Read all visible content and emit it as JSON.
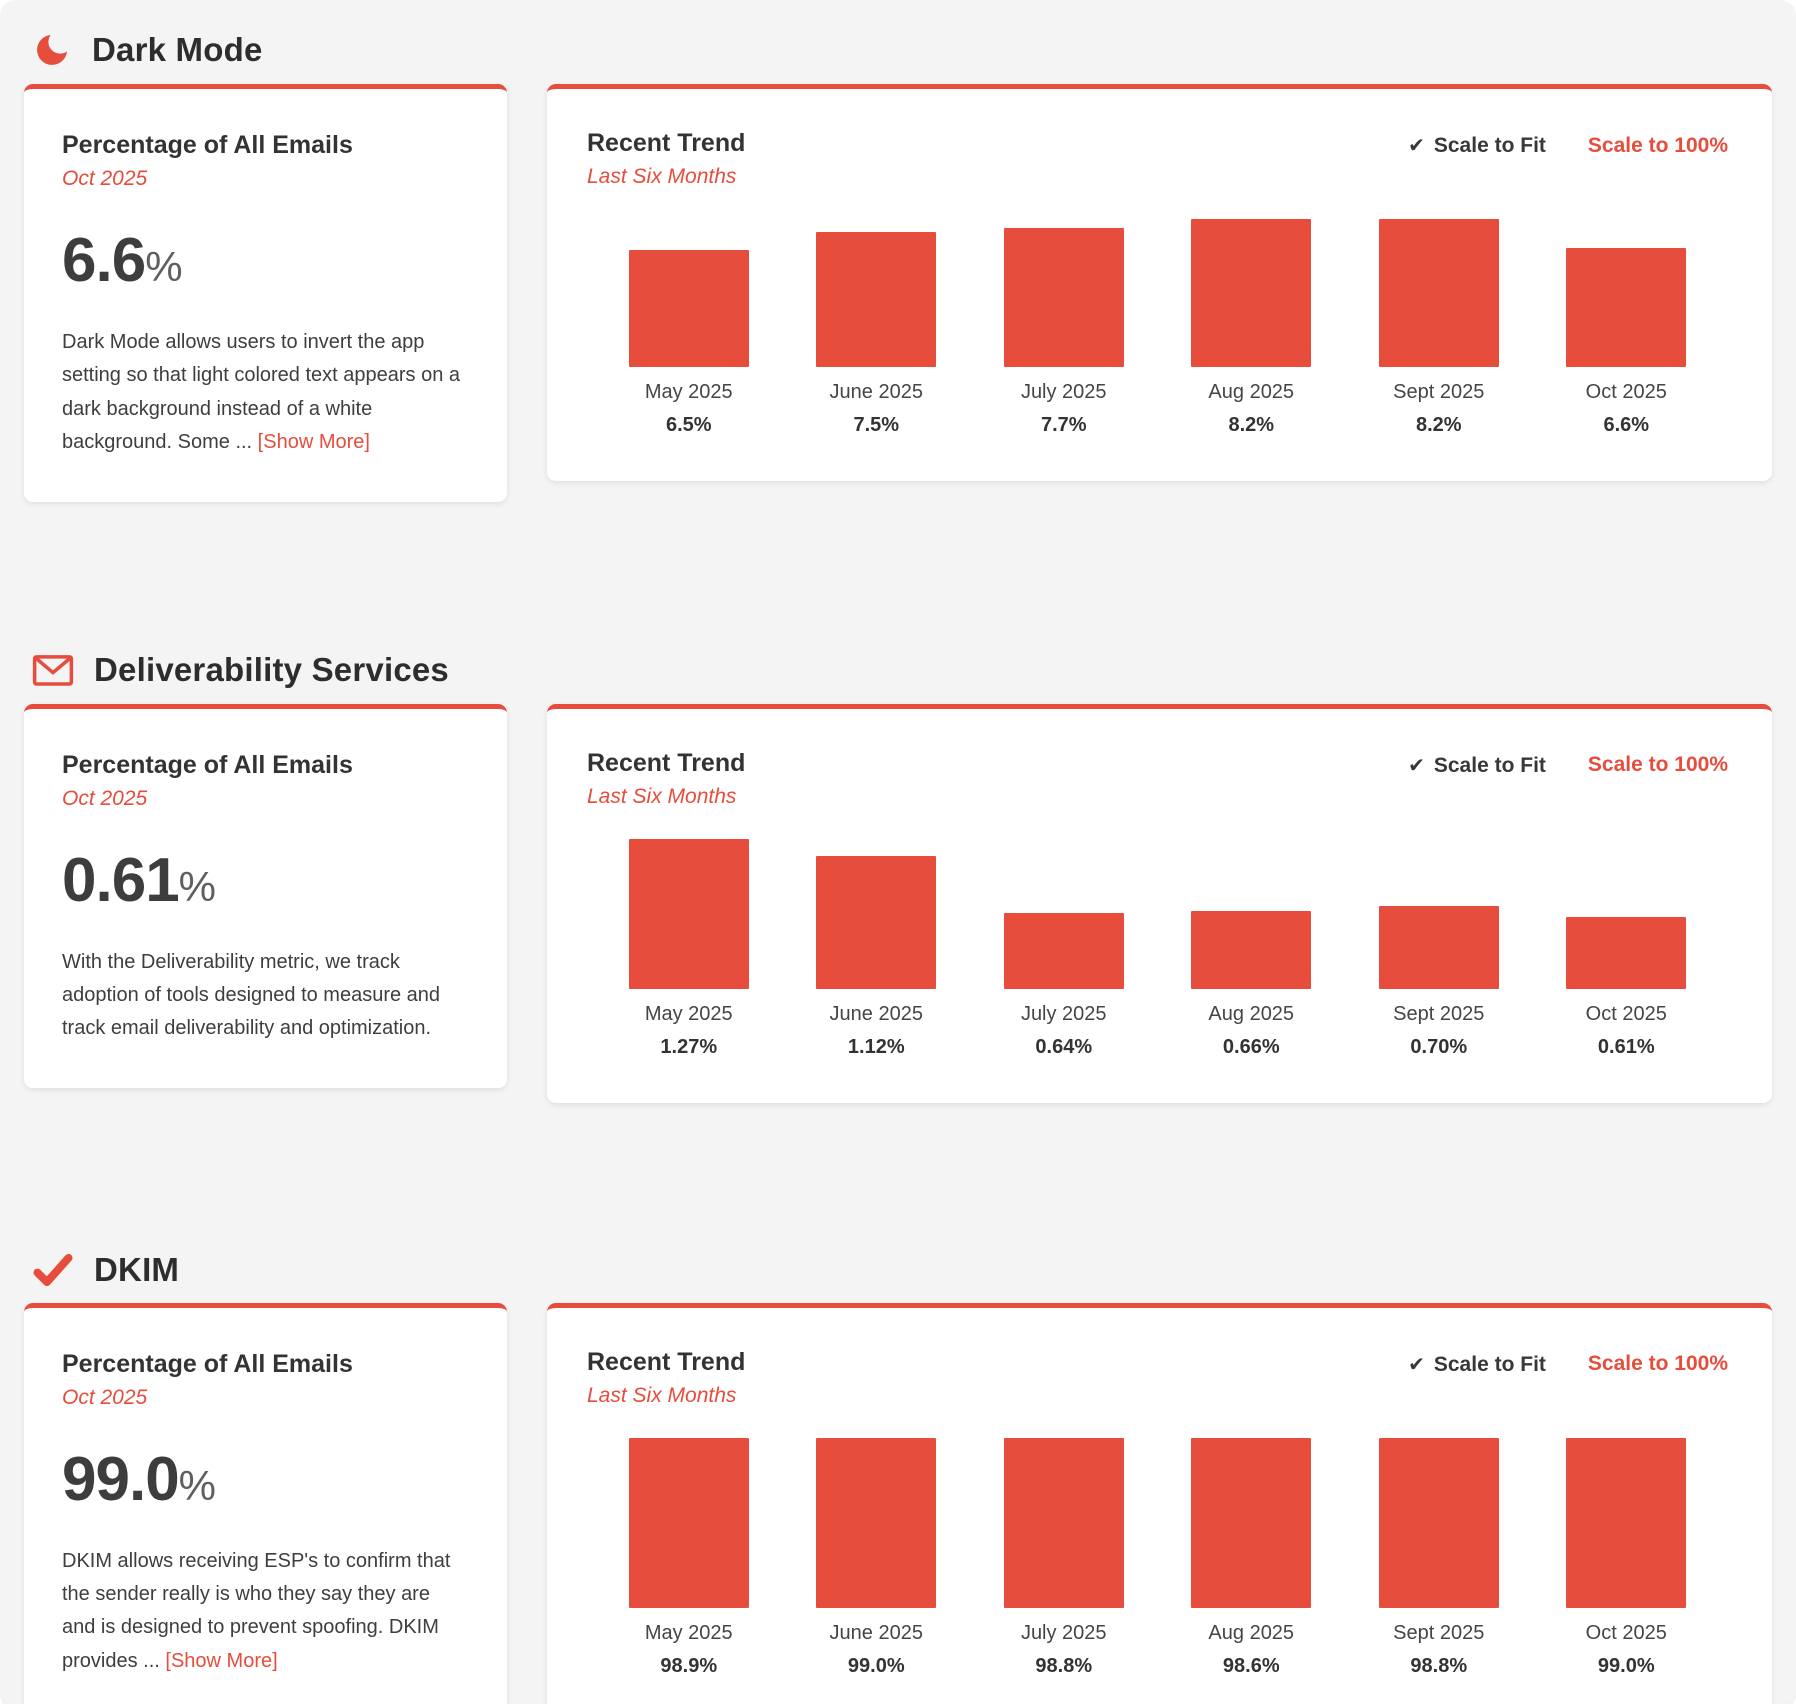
{
  "accent_color": "#e64d3c",
  "sections": [
    {
      "icon_name": "moon-icon",
      "title": "Dark Mode",
      "summary": {
        "heading": "Percentage of All Emails",
        "period": "Oct 2025",
        "value": "6.6",
        "unit": "%",
        "description": "Dark Mode allows users to invert the app setting so that light colored text appears on a dark background instead of a white background. Some ... ",
        "show_more_label": "[Show More]"
      },
      "trend": {
        "heading": "Recent Trend",
        "subheading": "Last Six Months",
        "scale_to_fit_label": "Scale to Fit",
        "scale_to_100_label": "Scale to 100%",
        "selected_scale": "Scale to Fit"
      }
    },
    {
      "icon_name": "envelope-icon",
      "title": "Deliverability Services",
      "summary": {
        "heading": "Percentage of All Emails",
        "period": "Oct 2025",
        "value": "0.61",
        "unit": "%",
        "description": "With the Deliverability metric, we track adoption of tools designed to measure and track email deliverability and optimization.",
        "show_more_label": ""
      },
      "trend": {
        "heading": "Recent Trend",
        "subheading": "Last Six Months",
        "scale_to_fit_label": "Scale to Fit",
        "scale_to_100_label": "Scale to 100%",
        "selected_scale": "Scale to Fit"
      }
    },
    {
      "icon_name": "check-icon",
      "title": "DKIM",
      "summary": {
        "heading": "Percentage of All Emails",
        "period": "Oct 2025",
        "value": "99.0",
        "unit": "%",
        "description": "DKIM allows receiving ESP's to confirm that the sender really is who they say they are and is designed to prevent spoofing. DKIM provides ... ",
        "show_more_label": "[Show More]"
      },
      "trend": {
        "heading": "Recent Trend",
        "subheading": "Last Six Months",
        "scale_to_fit_label": "Scale to Fit",
        "scale_to_100_label": "Scale to 100%",
        "selected_scale": "Scale to Fit"
      }
    }
  ],
  "chart_data": [
    {
      "type": "bar",
      "title": "Recent Trend",
      "subtitle": "Last Six Months",
      "categories": [
        "May 2025",
        "June 2025",
        "July 2025",
        "Aug 2025",
        "Sept 2025",
        "Oct 2025"
      ],
      "values": [
        6.5,
        7.5,
        7.7,
        8.2,
        8.2,
        6.6
      ],
      "display_values": [
        "6.5%",
        "7.5%",
        "7.7%",
        "8.2%",
        "8.2%",
        "6.6%"
      ],
      "unit": "%",
      "bar_color": "#e64d3c",
      "scale_mode": "fit",
      "ylim": [
        0,
        8.2
      ],
      "grid": false,
      "legend": false
    },
    {
      "type": "bar",
      "title": "Recent Trend",
      "subtitle": "Last Six Months",
      "categories": [
        "May 2025",
        "June 2025",
        "July 2025",
        "Aug 2025",
        "Sept 2025",
        "Oct 2025"
      ],
      "values": [
        1.27,
        1.12,
        0.64,
        0.66,
        0.7,
        0.61
      ],
      "display_values": [
        "1.27%",
        "1.12%",
        "0.64%",
        "0.66%",
        "0.70%",
        "0.61%"
      ],
      "unit": "%",
      "bar_color": "#e64d3c",
      "scale_mode": "fit",
      "ylim": [
        0,
        1.27
      ],
      "grid": false,
      "legend": false
    },
    {
      "type": "bar",
      "title": "Recent Trend",
      "subtitle": "Last Six Months",
      "categories": [
        "May 2025",
        "June 2025",
        "July 2025",
        "Aug 2025",
        "Sept 2025",
        "Oct 2025"
      ],
      "values": [
        98.9,
        99.0,
        98.8,
        98.6,
        98.8,
        99.0
      ],
      "display_values": [
        "98.9%",
        "99.0%",
        "98.8%",
        "98.6%",
        "98.8%",
        "99.0%"
      ],
      "unit": "%",
      "bar_color": "#e64d3c",
      "scale_mode": "fit",
      "ylim": [
        0,
        99.0
      ],
      "grid": false,
      "legend": false
    }
  ]
}
